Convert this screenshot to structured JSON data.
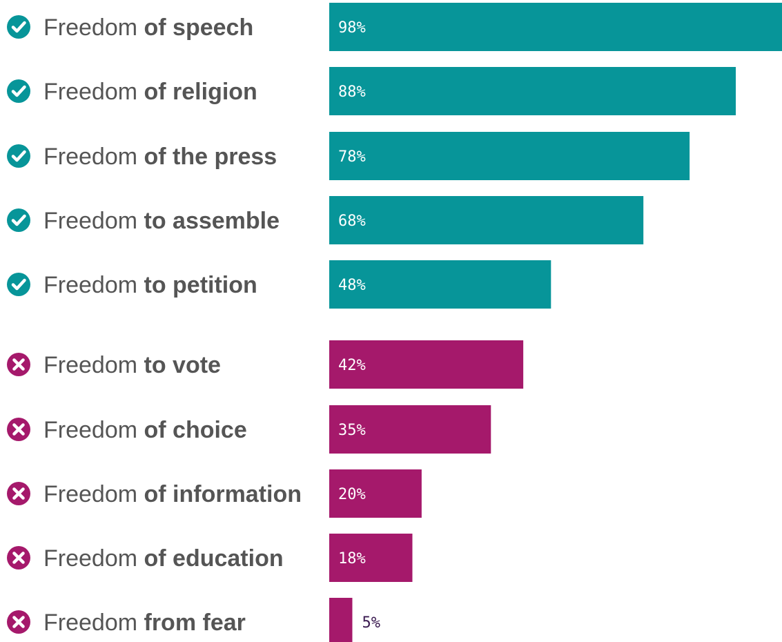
{
  "chart_data": {
    "type": "bar",
    "orientation": "horizontal",
    "xlim": [
      0,
      98
    ],
    "grid": false,
    "colors": {
      "included": "#079599",
      "excluded": "#A5196B",
      "label_text": "#555555",
      "outside_value_text": "#3a1a50"
    },
    "categories": [
      {
        "prefix": "Freedom",
        "emphasis": "of speech",
        "value": 98,
        "value_label": "98%",
        "status": "included",
        "icon": "check-circle-icon"
      },
      {
        "prefix": "Freedom",
        "emphasis": "of religion",
        "value": 88,
        "value_label": "88%",
        "status": "included",
        "icon": "check-circle-icon"
      },
      {
        "prefix": "Freedom",
        "emphasis": "of the press",
        "value": 78,
        "value_label": "78%",
        "status": "included",
        "icon": "check-circle-icon"
      },
      {
        "prefix": "Freedom",
        "emphasis": "to assemble",
        "value": 68,
        "value_label": "68%",
        "status": "included",
        "icon": "check-circle-icon"
      },
      {
        "prefix": "Freedom",
        "emphasis": "to petition",
        "value": 48,
        "value_label": "48%",
        "status": "included",
        "icon": "check-circle-icon"
      },
      {
        "prefix": "Freedom",
        "emphasis": "to vote",
        "value": 42,
        "value_label": "42%",
        "status": "excluded",
        "icon": "x-circle-icon"
      },
      {
        "prefix": "Freedom",
        "emphasis": "of choice",
        "value": 35,
        "value_label": "35%",
        "status": "excluded",
        "icon": "x-circle-icon"
      },
      {
        "prefix": "Freedom",
        "emphasis": "of information",
        "value": 20,
        "value_label": "20%",
        "status": "excluded",
        "icon": "x-circle-icon"
      },
      {
        "prefix": "Freedom",
        "emphasis": "of education",
        "value": 18,
        "value_label": "18%",
        "status": "excluded",
        "icon": "x-circle-icon"
      },
      {
        "prefix": "Freedom",
        "emphasis": "from fear",
        "value": 5,
        "value_label": "5%",
        "status": "excluded",
        "icon": "x-circle-icon"
      }
    ]
  }
}
